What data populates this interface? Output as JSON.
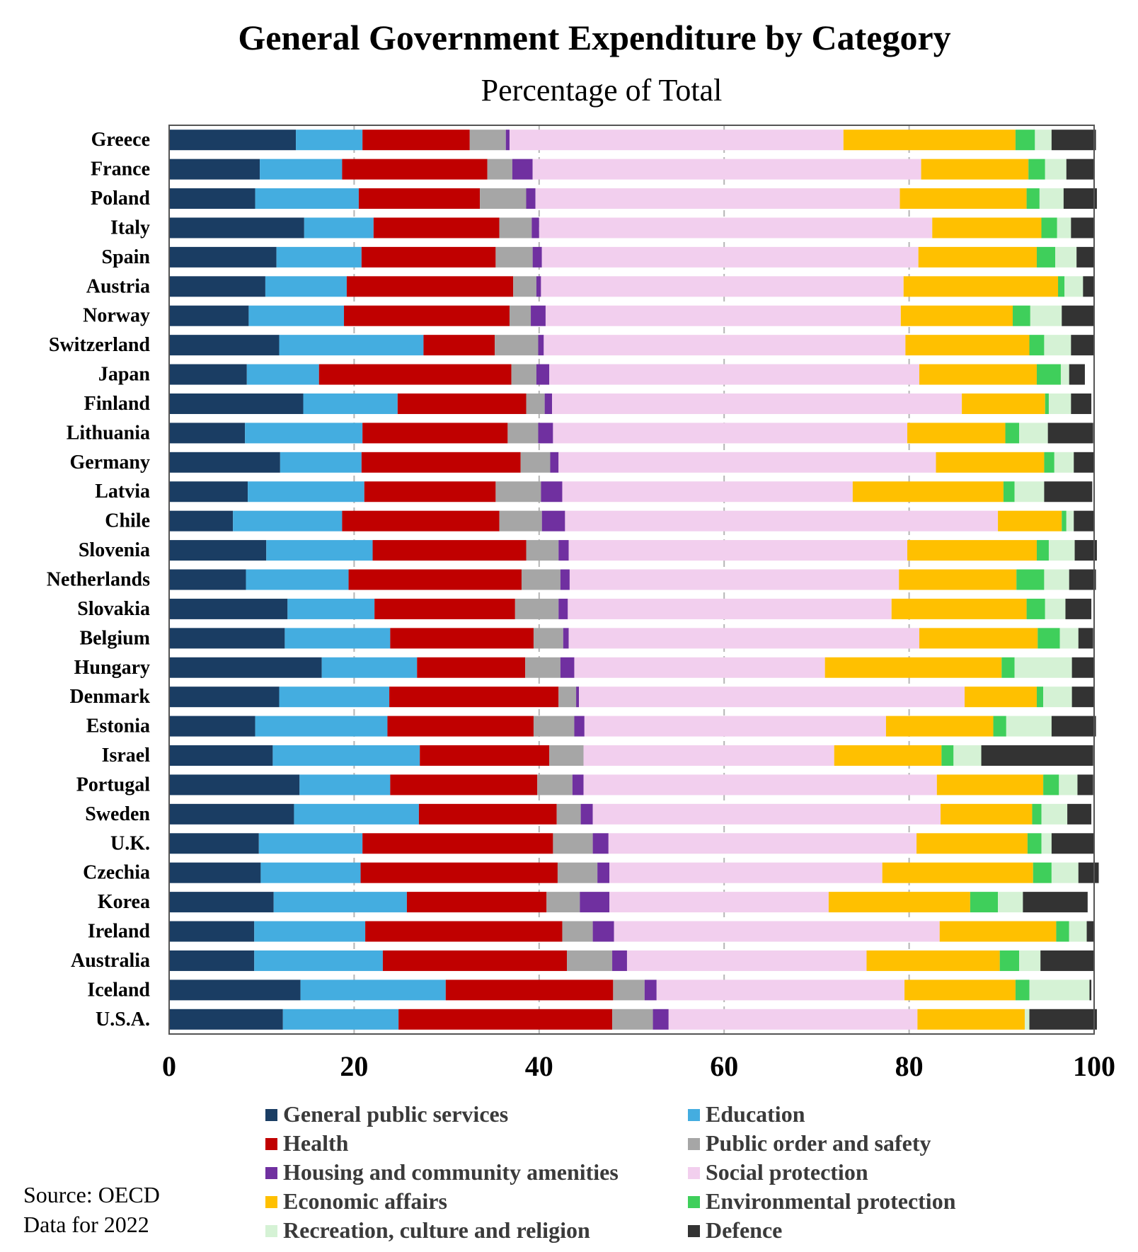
{
  "chart_data": {
    "type": "bar",
    "orientation": "horizontal",
    "stacked": true,
    "title": "General Government Expenditure by Category",
    "subtitle": "Percentage of Total",
    "xlim": [
      0,
      100
    ],
    "xticks": [
      "0",
      "20",
      "40",
      "60",
      "80",
      "100"
    ],
    "grid": "vertical dashed",
    "legend_position": "bottom",
    "categories": [
      "Greece",
      "France",
      "Poland",
      "Italy",
      "Spain",
      "Austria",
      "Norway",
      "Switzerland",
      "Japan",
      "Finland",
      "Lithuania",
      "Germany",
      "Latvia",
      "Chile",
      "Slovenia",
      "Netherlands",
      "Slovakia",
      "Belgium",
      "Hungary",
      "Denmark",
      "Estonia",
      "Israel",
      "Portugal",
      "Sweden",
      "U.K.",
      "Czechia",
      "Korea",
      "Ireland",
      "Australia",
      "Iceland",
      "U.S.A."
    ],
    "series": [
      {
        "name": "General public services",
        "color": "#1a3d63",
        "values": [
          13.7,
          9.8,
          9.3,
          14.6,
          11.6,
          10.4,
          8.6,
          11.9,
          8.4,
          14.5,
          8.2,
          12.0,
          8.5,
          6.9,
          10.5,
          8.3,
          12.8,
          12.5,
          16.5,
          11.9,
          9.3,
          11.2,
          14.1,
          13.5,
          9.7,
          9.9,
          11.3,
          9.2,
          9.2,
          14.2,
          12.3
        ]
      },
      {
        "name": "Education",
        "color": "#44ade0",
        "values": [
          7.2,
          8.9,
          11.2,
          7.5,
          9.2,
          8.8,
          10.3,
          15.6,
          7.8,
          10.2,
          12.7,
          8.8,
          12.6,
          11.8,
          11.5,
          11.1,
          9.4,
          11.4,
          10.3,
          11.9,
          14.3,
          15.9,
          9.8,
          13.5,
          11.2,
          10.8,
          14.4,
          12.0,
          13.9,
          15.7,
          12.5
        ]
      },
      {
        "name": "Health",
        "color": "#c00000",
        "values": [
          11.6,
          15.7,
          13.1,
          13.6,
          14.5,
          18.0,
          17.9,
          7.7,
          20.8,
          13.9,
          15.7,
          17.2,
          14.2,
          17.0,
          16.6,
          18.7,
          15.2,
          15.5,
          11.7,
          18.3,
          15.8,
          14.0,
          15.9,
          14.9,
          20.6,
          21.3,
          15.1,
          21.3,
          19.9,
          18.1,
          23.1
        ]
      },
      {
        "name": "Public order and safety",
        "color": "#a6a6a6",
        "values": [
          3.9,
          2.7,
          5.0,
          3.5,
          4.0,
          2.5,
          2.3,
          4.7,
          2.7,
          2.0,
          3.3,
          3.2,
          4.9,
          4.6,
          3.5,
          4.2,
          4.7,
          3.2,
          3.8,
          1.9,
          4.4,
          3.7,
          3.8,
          2.6,
          4.3,
          4.3,
          3.6,
          3.3,
          4.9,
          3.4,
          4.4
        ]
      },
      {
        "name": "Housing and community amenities",
        "color": "#7030a0",
        "values": [
          0.4,
          2.2,
          1.0,
          0.8,
          1.0,
          0.5,
          1.6,
          0.6,
          1.4,
          0.8,
          1.6,
          0.9,
          2.3,
          2.5,
          1.1,
          1.0,
          1.0,
          0.6,
          1.5,
          0.3,
          1.1,
          0.0,
          1.2,
          1.3,
          1.7,
          1.3,
          3.2,
          2.3,
          1.6,
          1.3,
          1.7
        ]
      },
      {
        "name": "Social protection",
        "color": "#f2cfee",
        "values": [
          36.1,
          42.0,
          39.4,
          42.5,
          40.7,
          39.2,
          38.4,
          39.1,
          40.0,
          44.3,
          38.3,
          40.8,
          31.4,
          46.8,
          36.6,
          35.6,
          35.0,
          37.9,
          27.1,
          41.7,
          32.6,
          27.1,
          38.2,
          37.6,
          33.3,
          29.5,
          23.7,
          35.2,
          25.9,
          26.8,
          26.9
        ]
      },
      {
        "name": "Economic affairs",
        "color": "#ffc000",
        "values": [
          18.6,
          11.6,
          13.7,
          11.8,
          12.8,
          16.7,
          12.1,
          13.4,
          12.7,
          9.0,
          10.6,
          11.7,
          16.3,
          6.9,
          14.0,
          12.7,
          14.6,
          12.8,
          19.1,
          7.8,
          11.6,
          11.6,
          11.5,
          9.9,
          12.0,
          16.3,
          15.3,
          12.6,
          14.4,
          12.0,
          11.6
        ]
      },
      {
        "name": "Environmental protection",
        "color": "#3fcf5b",
        "values": [
          2.1,
          1.8,
          1.4,
          1.7,
          2.0,
          0.7,
          1.9,
          1.6,
          2.6,
          0.4,
          1.5,
          1.1,
          1.2,
          0.5,
          1.3,
          3.0,
          2.0,
          2.4,
          1.4,
          0.7,
          1.4,
          1.3,
          1.7,
          1.0,
          1.5,
          2.0,
          3.0,
          1.4,
          2.1,
          1.5,
          0.0
        ]
      },
      {
        "name": "Recreation, culture and religion",
        "color": "#d5f2d5",
        "values": [
          1.8,
          2.3,
          2.6,
          1.5,
          2.3,
          2.0,
          3.4,
          2.9,
          0.9,
          2.4,
          3.1,
          2.1,
          3.2,
          0.8,
          2.8,
          2.7,
          2.2,
          2.0,
          6.2,
          3.1,
          4.9,
          3.0,
          2.0,
          2.8,
          1.1,
          2.9,
          2.7,
          1.9,
          2.3,
          6.5,
          0.5
        ]
      },
      {
        "name": "Defence",
        "color": "#333333",
        "values": [
          4.8,
          3.0,
          3.6,
          2.5,
          1.9,
          1.2,
          3.5,
          2.5,
          1.7,
          2.2,
          4.9,
          2.2,
          5.2,
          2.2,
          2.4,
          2.9,
          2.8,
          1.6,
          2.4,
          2.4,
          4.8,
          12.1,
          1.7,
          2.6,
          4.6,
          2.2,
          7.0,
          0.8,
          5.8,
          0.2,
          7.3
        ]
      }
    ]
  },
  "source": "Source: OECD",
  "period": "Data for 2022"
}
